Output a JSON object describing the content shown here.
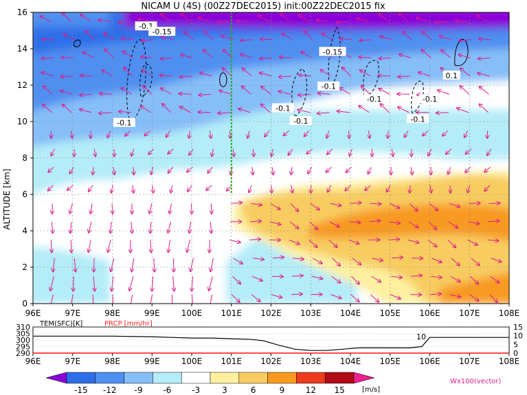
{
  "title": "NICAM U (4S) (00Z27DEC2015) init:00Z22DEC2015 fix",
  "colors": {
    "purple": "#8a00d8",
    "blue_dark": "#2d6ee8",
    "blue": "#4f8ff0",
    "blue_light": "#86bef8",
    "cyan": "#b4ecf8",
    "white": "#ffffff",
    "yellow": "#fff0a0",
    "gold": "#f8cc60",
    "orange": "#f89a20",
    "red": "#ee3a1e",
    "darkred": "#b00a14",
    "magenta": "#ee2090",
    "vector": "#dd1a8a",
    "prcp": "#ff2020",
    "green_line": "#22aa22"
  },
  "chart_data": [
    {
      "type": "heatmap",
      "title": "NICAM U (4S) (00Z27DEC2015) init:00Z22DEC2015 fix",
      "xlabel": "",
      "ylabel": "ALTITUDE [km]",
      "x_ticks": [
        "96E",
        "97E",
        "98E",
        "99E",
        "100E",
        "101E",
        "102E",
        "103E",
        "104E",
        "105E",
        "106E",
        "107E",
        "108E"
      ],
      "xlim": [
        96,
        108
      ],
      "y_ticks": [
        "0",
        "2",
        "4",
        "6",
        "8",
        "10",
        "12",
        "14",
        "16"
      ],
      "ylim": [
        0,
        16
      ],
      "grid": true,
      "marked_longitude": 101,
      "contour_labels": [
        {
          "text": "-0.1",
          "lon": 98.85,
          "alt": 15.2
        },
        {
          "text": "-0.15",
          "lon": 99.25,
          "alt": 14.9
        },
        {
          "text": "-0.15",
          "lon": 103.55,
          "alt": 13.8
        },
        {
          "text": "-0.1",
          "lon": 103.45,
          "alt": 11.9
        },
        {
          "text": "-0.1",
          "lon": 98.3,
          "alt": 9.9
        },
        {
          "text": "-0.1",
          "lon": 102.3,
          "alt": 10.7
        },
        {
          "text": "-0.1",
          "lon": 102.75,
          "alt": 10.0
        },
        {
          "text": "-0.1",
          "lon": 104.6,
          "alt": 11.2
        },
        {
          "text": "-0.1",
          "lon": 106.0,
          "alt": 11.2
        },
        {
          "text": "-0.1",
          "lon": 105.7,
          "alt": 10.1
        },
        {
          "text": "0.1",
          "lon": 106.55,
          "alt": 12.5
        }
      ]
    },
    {
      "type": "line",
      "series": [
        {
          "name": "TEM(SFC)[K]",
          "x": [
            96,
            97,
            98,
            99,
            99.5,
            100,
            100.5,
            101,
            101.5,
            101.8,
            102.2,
            102.6,
            103,
            103.4,
            103.8,
            104.2,
            104.6,
            105,
            105.5,
            105.8,
            106,
            106.5,
            107,
            107.5,
            108
          ],
          "y": [
            303,
            303,
            303,
            302.5,
            302,
            301.5,
            301.5,
            301,
            300.5,
            299.5,
            296,
            293,
            292,
            292,
            293,
            294,
            294,
            294,
            294,
            295,
            302,
            302,
            302,
            302,
            302
          ]
        },
        {
          "name": "PRCP [mm/hr]",
          "x": [
            96,
            108
          ],
          "y": [
            0,
            0
          ]
        }
      ],
      "left_axis_ticks": [
        "310",
        "305",
        "300",
        "295",
        "290"
      ],
      "left_ylim": [
        290,
        310
      ],
      "right_axis_ticks": [
        "15",
        "10",
        "5",
        "0"
      ],
      "right_ylim": [
        0,
        15
      ],
      "x_ticks": [
        "96E",
        "97E",
        "98E",
        "99E",
        "100E",
        "101E",
        "102E",
        "103E",
        "104E",
        "105E",
        "106E",
        "107E",
        "108E"
      ],
      "annotation": "10"
    }
  ],
  "colorbar": {
    "ticks": [
      "-15",
      "-12",
      "-9",
      "-6",
      "-3",
      "3",
      "6",
      "9",
      "12",
      "15"
    ],
    "unit": "[m/s]",
    "vector_label": "Wx100(vector)"
  }
}
